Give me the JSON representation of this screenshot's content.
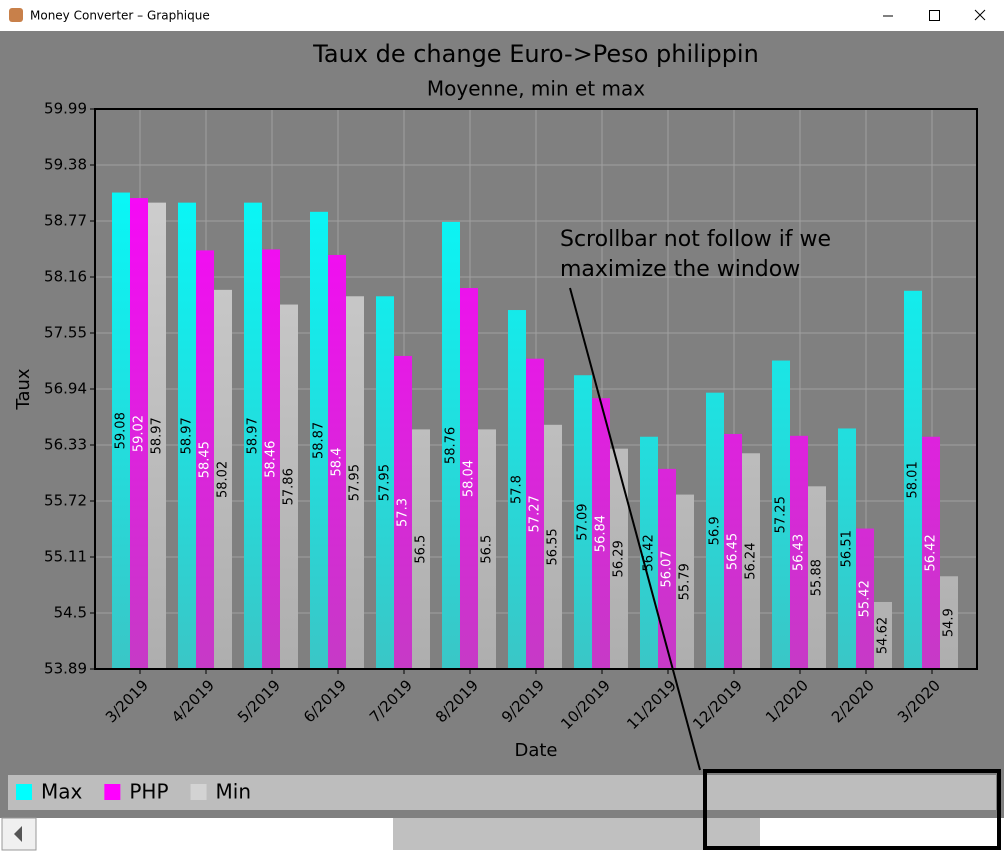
{
  "window": {
    "title": "Money Converter – Graphique"
  },
  "chart_data": {
    "type": "bar",
    "title": "Taux de change Euro->Peso philippin",
    "subtitle": "Moyenne, min et max",
    "y_label": "Taux",
    "x_label": "Date",
    "annotation": [
      "Scrollbar not follow if we",
      "maximize the window"
    ],
    "categories": [
      "3/2019",
      "4/2019",
      "5/2019",
      "6/2019",
      "7/2019",
      "8/2019",
      "9/2019",
      "10/2019",
      "11/2019",
      "12/2019",
      "1/2020",
      "2/2020",
      "3/2020"
    ],
    "series": [
      {
        "name": "Max",
        "color": "#00ffff",
        "values": [
          59.08,
          58.97,
          58.97,
          58.87,
          57.95,
          58.76,
          57.8,
          57.09,
          56.42,
          56.9,
          57.25,
          56.51,
          58.01
        ]
      },
      {
        "name": "PHP",
        "color": "#ff00ff",
        "values": [
          59.02,
          58.45,
          58.46,
          58.4,
          57.3,
          58.04,
          57.27,
          56.84,
          56.07,
          56.45,
          56.43,
          55.42,
          56.42
        ]
      },
      {
        "name": "Min",
        "color": "#d3d3d3",
        "values": [
          58.97,
          58.02,
          57.86,
          57.95,
          56.5,
          56.5,
          56.55,
          56.29,
          55.79,
          56.24,
          55.88,
          54.62,
          54.9
        ]
      }
    ],
    "ylim": [
      53.89,
      59.99
    ],
    "yticks": [
      53.89,
      54.5,
      55.11,
      55.72,
      56.33,
      56.94,
      57.55,
      58.16,
      58.77,
      59.38,
      59.99
    ],
    "grid": true,
    "legend": "bottom-left"
  }
}
